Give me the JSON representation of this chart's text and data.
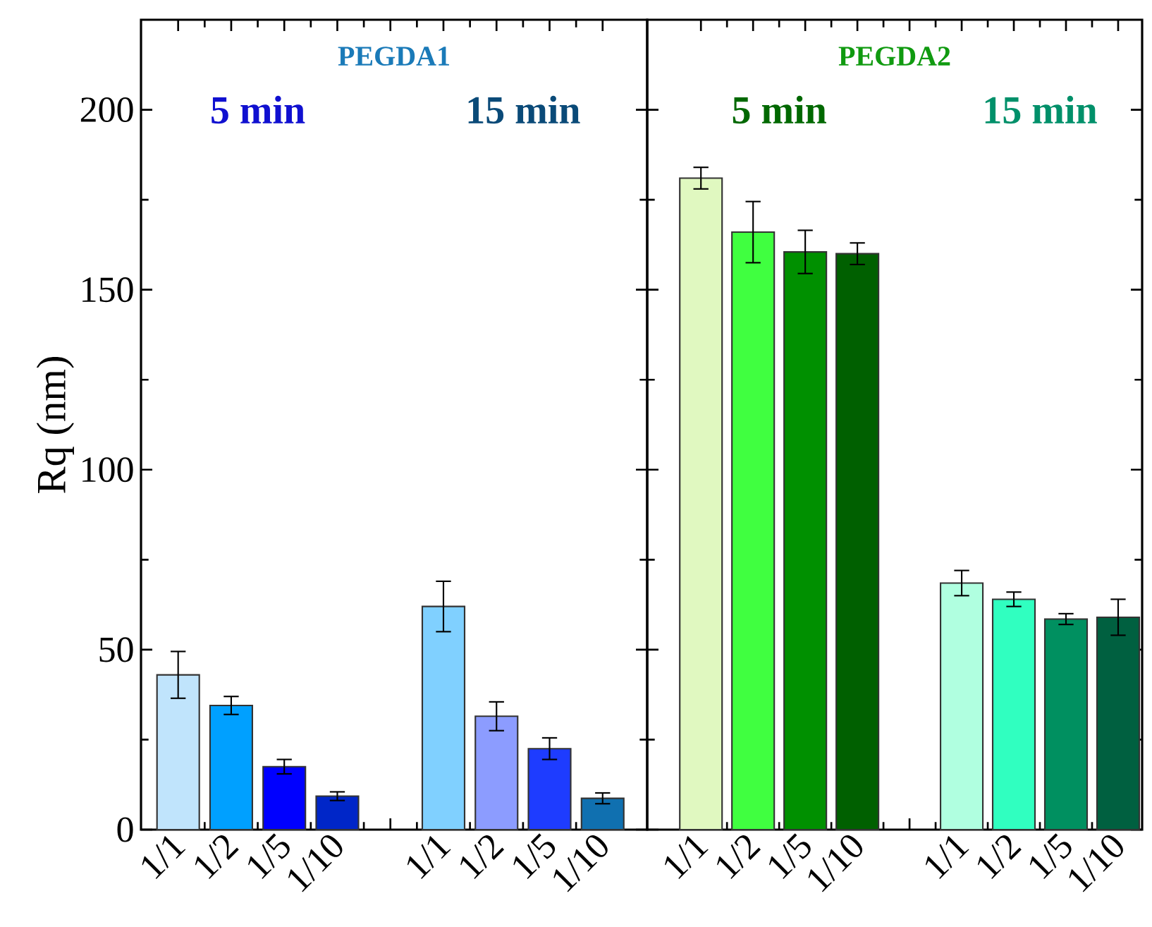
{
  "chart_data": [
    {
      "type": "bar",
      "title": "PEGDA1",
      "ylabel": "Rq (nm)",
      "categories": [
        "1/1",
        "1/2",
        "1/5",
        "1/10",
        null,
        "1/1",
        "1/2",
        "1/5",
        "1/10"
      ],
      "values": [
        43,
        34.5,
        17.5,
        9.3,
        null,
        62,
        31.5,
        22.5,
        8.7
      ],
      "errors": [
        6.5,
        2.5,
        2,
        1.2,
        null,
        7,
        4,
        3,
        1.5
      ],
      "colors": [
        "#c0e4fc",
        "#00a0ff",
        "#0000ff",
        "#0026c8",
        "#ffffff",
        "#80d0ff",
        "#8c9cff",
        "#1e3cff",
        "#1070b0"
      ],
      "ylim": [
        0,
        225
      ],
      "yticks": [
        0,
        50,
        100,
        150,
        200
      ],
      "annotations": [
        "5 min",
        "15 min"
      ]
    },
    {
      "type": "bar",
      "title": "PEGDA2",
      "categories": [
        "1/1",
        "1/2",
        "1/5",
        "1/10",
        null,
        "1/1",
        "1/2",
        "1/5",
        "1/10"
      ],
      "values": [
        181,
        166,
        160.5,
        160,
        null,
        68.5,
        64,
        58.5,
        59
      ],
      "errors": [
        3,
        8.5,
        6,
        3,
        null,
        3.5,
        2,
        1.5,
        5
      ],
      "colors": [
        "#e0f8c0",
        "#40ff40",
        "#009000",
        "#006000",
        "#ffffff",
        "#b0ffe0",
        "#30ffc0",
        "#009060",
        "#006040"
      ],
      "ylim": [
        0,
        225
      ],
      "yticks": [
        0,
        50,
        100,
        150,
        200
      ],
      "tick_labels": "x",
      "annotations": [
        "5 min",
        "15 min"
      ]
    }
  ]
}
